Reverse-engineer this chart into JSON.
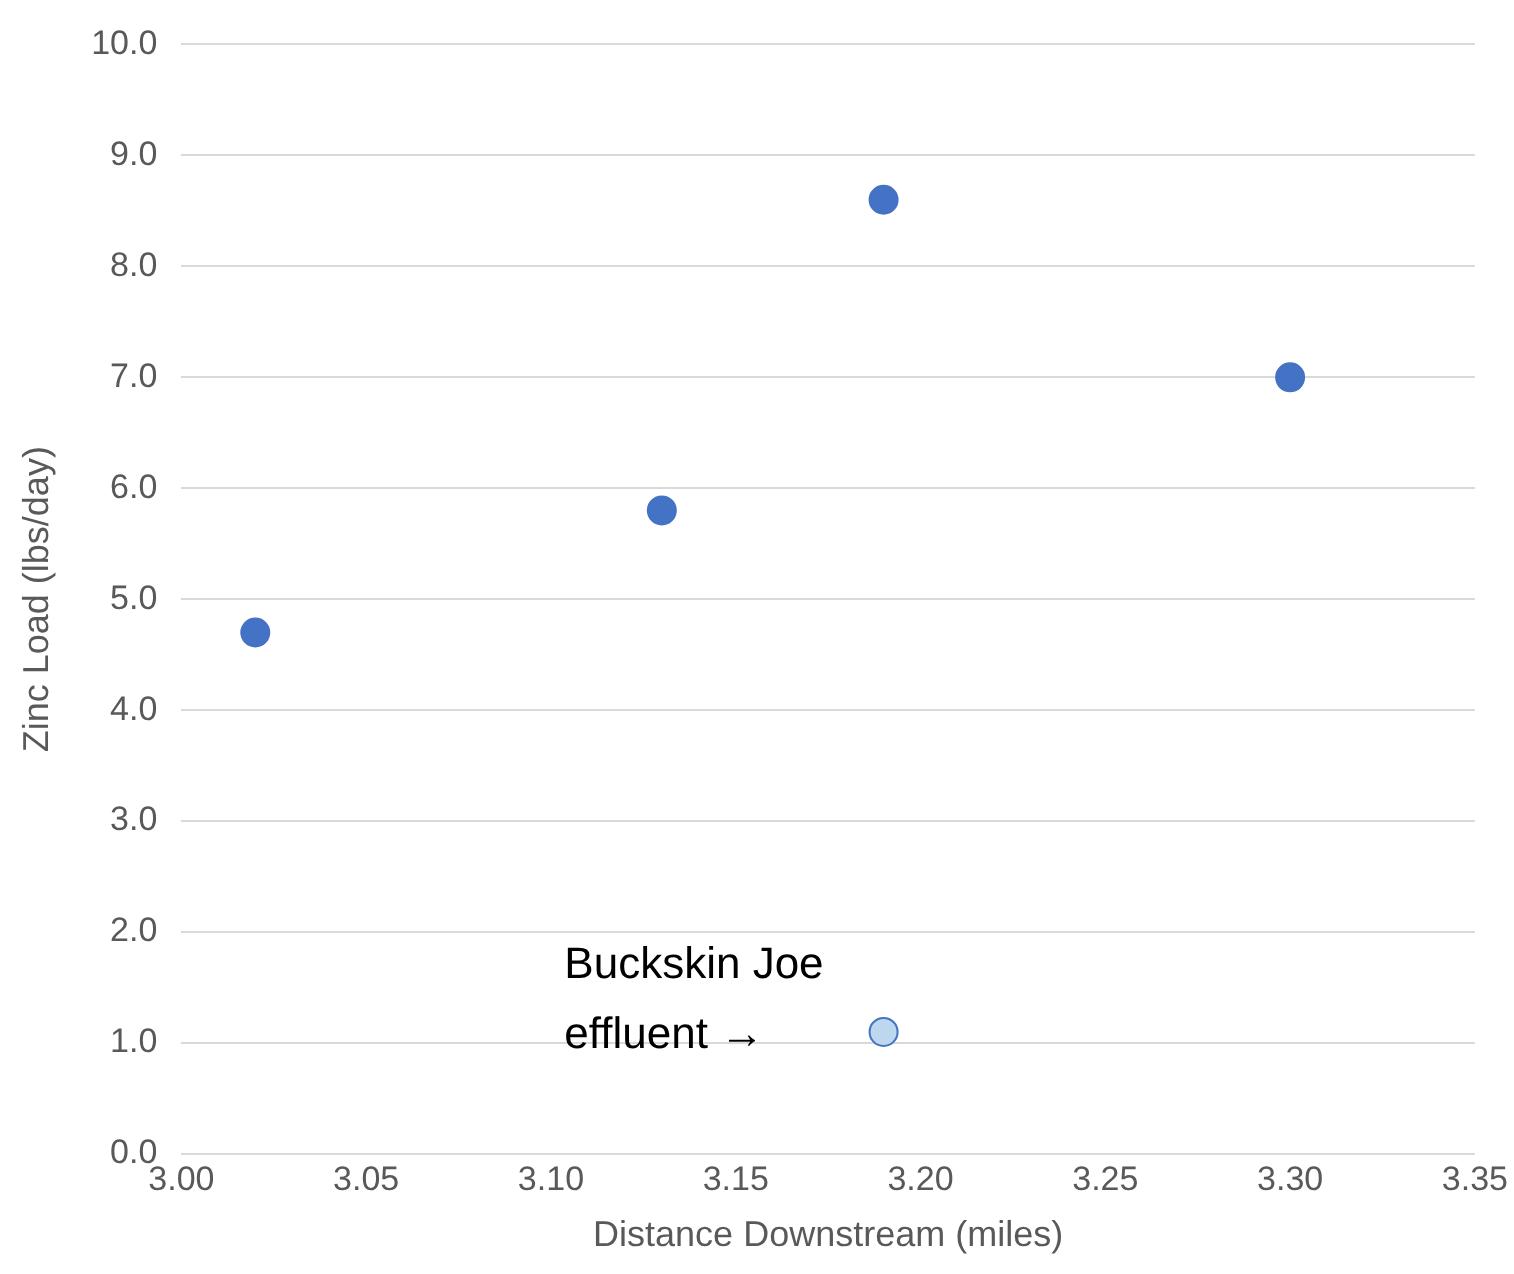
{
  "chart_data": {
    "type": "scatter",
    "xlabel": "Distance Downstream (miles)",
    "ylabel": "Zinc Load (lbs/day)",
    "series": [
      {
        "color": "#4472c4",
        "x": [
          3.02,
          3.13,
          3.19,
          3.3
        ],
        "values": [
          4.7,
          5.8,
          8.6,
          7.0
        ]
      },
      {
        "color": "#bdd7ee",
        "x": [
          3.19
        ],
        "values": [
          1.1
        ]
      }
    ],
    "xlim": [
      3.0,
      3.35
    ],
    "xticks": [
      {
        "value": 3.0,
        "label": "3.00"
      },
      {
        "value": 3.05,
        "label": "3.05"
      },
      {
        "value": 3.1,
        "label": "3.10"
      },
      {
        "value": 3.15,
        "label": "3.15"
      },
      {
        "value": 3.2,
        "label": "3.20"
      },
      {
        "value": 3.25,
        "label": "3.25"
      },
      {
        "value": 3.3,
        "label": "3.30"
      },
      {
        "value": 3.35,
        "label": "3.35"
      }
    ],
    "ylim": [
      0,
      10
    ],
    "yticks": [
      {
        "value": 0,
        "label": "0.0"
      },
      {
        "value": 1,
        "label": "1.0"
      },
      {
        "value": 2,
        "label": "2.0"
      },
      {
        "value": 3,
        "label": "3.0"
      },
      {
        "value": 4,
        "label": "4.0"
      },
      {
        "value": 5,
        "label": "5.0"
      },
      {
        "value": 6,
        "label": "6.0"
      },
      {
        "value": 7,
        "label": "7.0"
      },
      {
        "value": 8,
        "label": "8.0"
      },
      {
        "value": 9,
        "label": "9.0"
      },
      {
        "value": 10,
        "label": "10.0"
      }
    ],
    "grid": "y",
    "marker": "circle",
    "annotations": [
      {
        "text": "Buckskin Joe\neffluent →",
        "x": 3.19,
        "y": 1.1
      }
    ]
  }
}
